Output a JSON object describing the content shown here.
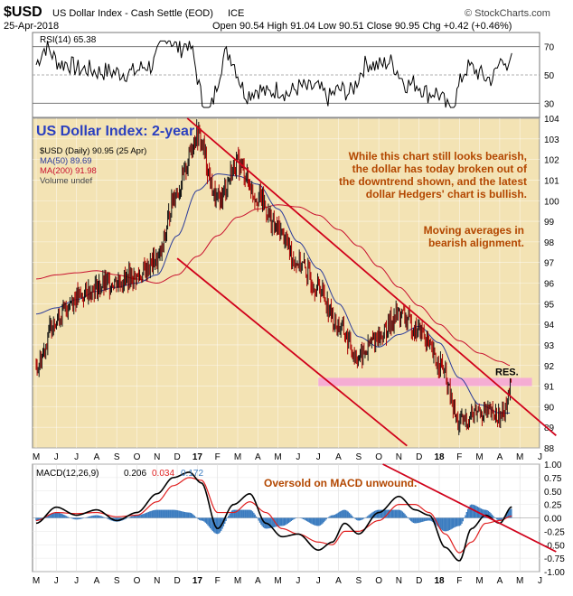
{
  "header": {
    "symbol": "$USD",
    "name": "US Dollar Index - Cash Settle (EOD)",
    "exchange": "ICE",
    "date": "25-Apr-2018",
    "ohlc": "Open 90.54  High 91.04  Low 90.51  Close 90.95  Chg +0.42 (+0.46%)",
    "source": "© StockCharts.com"
  },
  "colors": {
    "panel_bg": "#f3e3b4",
    "price": "#1a0000",
    "ma50": "#2b3b9b",
    "ma200": "#c8102e",
    "channel": "#d0021b",
    "res_band": "#f5a3d8",
    "annotation": "#b34700",
    "title_blue": "#2a3fbf",
    "macd": "#000000",
    "signal": "#e02020",
    "hist": "#3a7bbf"
  },
  "chart_data": [
    {
      "type": "line",
      "name": "rsi_panel",
      "legend": "RSI(14) 65.38",
      "ylim": [
        20,
        80
      ],
      "ticks": [
        "70",
        "50",
        "30"
      ],
      "tick_values": [
        70,
        50,
        30
      ],
      "levels": [
        70,
        50,
        30
      ],
      "last": 65.38
    },
    {
      "type": "line",
      "name": "price_panel",
      "title": "US Dollar Index: 2-year",
      "legend": [
        "$USD (Daily) 90.95 (25 Apr)",
        "MA(50) 89.69",
        "MA(200) 91.98",
        "Volume undef"
      ],
      "ylim": [
        88,
        104
      ],
      "yticks": [
        "104",
        "103",
        "102",
        "101",
        "100",
        "99",
        "98",
        "97",
        "96",
        "95",
        "94",
        "93",
        "92",
        "91",
        "90",
        "89",
        "88"
      ],
      "months": [
        "M",
        "J",
        "J",
        "A",
        "S",
        "O",
        "N",
        "D",
        "17",
        "F",
        "M",
        "A",
        "M",
        "J",
        "J",
        "A",
        "S",
        "O",
        "N",
        "D",
        "18",
        "F",
        "M",
        "A",
        "M",
        "J"
      ],
      "series_keypoints": {
        "price": [
          [
            0,
            92.0
          ],
          [
            1,
            94.3
          ],
          [
            2,
            95.3
          ],
          [
            3,
            95.8
          ],
          [
            4,
            96.1
          ],
          [
            5,
            96.3
          ],
          [
            6,
            97.1
          ],
          [
            7,
            100.5
          ],
          [
            8,
            103.2
          ],
          [
            9,
            100.0
          ],
          [
            10,
            101.8
          ],
          [
            11,
            100.2
          ],
          [
            12,
            98.6
          ],
          [
            13,
            97.0
          ],
          [
            14,
            95.8
          ],
          [
            15,
            93.9
          ],
          [
            16,
            92.4
          ],
          [
            17,
            93.4
          ],
          [
            18,
            94.5
          ],
          [
            19,
            93.7
          ],
          [
            20,
            92.1
          ],
          [
            21,
            89.2
          ],
          [
            22,
            89.8
          ],
          [
            23,
            89.5
          ],
          [
            23.6,
            90.95
          ]
        ],
        "ma50": [
          [
            0,
            94.5
          ],
          [
            1,
            94.8
          ],
          [
            2,
            95.2
          ],
          [
            3,
            95.6
          ],
          [
            4,
            95.8
          ],
          [
            5,
            96.0
          ],
          [
            6,
            96.4
          ],
          [
            7,
            98.3
          ],
          [
            8,
            100.5
          ],
          [
            9,
            101.3
          ],
          [
            10,
            101.2
          ],
          [
            11,
            100.8
          ],
          [
            12,
            99.6
          ],
          [
            13,
            98.0
          ],
          [
            14,
            96.7
          ],
          [
            15,
            95.0
          ],
          [
            16,
            93.4
          ],
          [
            17,
            92.9
          ],
          [
            18,
            93.5
          ],
          [
            19,
            93.9
          ],
          [
            20,
            93.1
          ],
          [
            21,
            91.4
          ],
          [
            22,
            90.1
          ],
          [
            23,
            89.7
          ],
          [
            23.6,
            89.69
          ]
        ],
        "ma200": [
          [
            0,
            96.2
          ],
          [
            1,
            96.4
          ],
          [
            2,
            96.5
          ],
          [
            3,
            96.6
          ],
          [
            4,
            96.4
          ],
          [
            5,
            96.2
          ],
          [
            6,
            96.0
          ],
          [
            7,
            96.4
          ],
          [
            8,
            97.3
          ],
          [
            9,
            98.3
          ],
          [
            10,
            99.2
          ],
          [
            11,
            99.6
          ],
          [
            12,
            99.8
          ],
          [
            13,
            99.7
          ],
          [
            14,
            99.3
          ],
          [
            15,
            98.6
          ],
          [
            16,
            97.8
          ],
          [
            17,
            96.8
          ],
          [
            18,
            95.8
          ],
          [
            19,
            94.9
          ],
          [
            20,
            94.0
          ],
          [
            21,
            93.2
          ],
          [
            22,
            92.6
          ],
          [
            23,
            92.2
          ],
          [
            23.6,
            91.98
          ]
        ]
      },
      "channel_upper": [
        [
          7.5,
          104.0
        ],
        [
          25.8,
          88.6
        ]
      ],
      "channel_lower": [
        [
          7.0,
          97.2
        ],
        [
          18.4,
          88.1
        ]
      ],
      "resistance": {
        "label": "RES.",
        "from": 91.0,
        "to": 91.4,
        "x_start": 14.0,
        "x_end": 24.6
      },
      "annotations": [
        "While this chart still looks bearish,",
        "the dollar has today broken out of",
        "the downtrend shown, and the latest",
        "dollar Hedgers' chart is bullish.",
        "Moving averages in",
        "bearish alignment."
      ]
    },
    {
      "type": "line",
      "name": "macd_panel",
      "legend_parts": [
        "MACD(12,26,9)",
        "0.206",
        "0.034",
        "0.172"
      ],
      "ylim": [
        -1.0,
        1.0
      ],
      "yticks": [
        "1.00",
        "0.75",
        "0.50",
        "0.25",
        "0.00",
        "-0.25",
        "-0.50",
        "-0.75",
        "-1.00"
      ],
      "annotation": "Oversold on MACD unwound.",
      "macd_keypoints": [
        [
          0,
          -0.1
        ],
        [
          1,
          0.2
        ],
        [
          2,
          0.05
        ],
        [
          3,
          0.15
        ],
        [
          4,
          -0.05
        ],
        [
          5,
          0.1
        ],
        [
          6,
          0.45
        ],
        [
          6.8,
          0.75
        ],
        [
          7.6,
          0.85
        ],
        [
          8.2,
          0.65
        ],
        [
          9,
          -0.2
        ],
        [
          9.8,
          0.25
        ],
        [
          10.6,
          0.45
        ],
        [
          11.4,
          -0.1
        ],
        [
          12.2,
          -0.35
        ],
        [
          13,
          -0.3
        ],
        [
          14,
          -0.6
        ],
        [
          14.7,
          -0.45
        ],
        [
          15.3,
          -0.1
        ],
        [
          16,
          -0.3
        ],
        [
          17,
          0.1
        ],
        [
          18,
          0.4
        ],
        [
          18.8,
          0.15
        ],
        [
          19.5,
          0.05
        ],
        [
          20.3,
          -0.55
        ],
        [
          21,
          -0.8
        ],
        [
          21.6,
          -0.2
        ],
        [
          22.3,
          0.05
        ],
        [
          23,
          -0.1
        ],
        [
          23.6,
          0.206
        ]
      ],
      "signal_keypoints": [
        [
          0,
          -0.05
        ],
        [
          1,
          0.1
        ],
        [
          2,
          0.08
        ],
        [
          3,
          0.1
        ],
        [
          4,
          0.02
        ],
        [
          5,
          0.05
        ],
        [
          6,
          0.3
        ],
        [
          6.8,
          0.6
        ],
        [
          7.6,
          0.75
        ],
        [
          8.2,
          0.7
        ],
        [
          9,
          0.1
        ],
        [
          9.8,
          0.1
        ],
        [
          10.6,
          0.3
        ],
        [
          11.4,
          0.1
        ],
        [
          12.2,
          -0.2
        ],
        [
          13,
          -0.3
        ],
        [
          14,
          -0.45
        ],
        [
          14.7,
          -0.5
        ],
        [
          15.3,
          -0.25
        ],
        [
          16,
          -0.25
        ],
        [
          17,
          -0.05
        ],
        [
          18,
          0.25
        ],
        [
          18.8,
          0.25
        ],
        [
          19.5,
          0.1
        ],
        [
          20.3,
          -0.3
        ],
        [
          21,
          -0.65
        ],
        [
          21.6,
          -0.45
        ],
        [
          22.3,
          -0.1
        ],
        [
          23,
          -0.05
        ],
        [
          23.6,
          0.034
        ]
      ]
    }
  ]
}
